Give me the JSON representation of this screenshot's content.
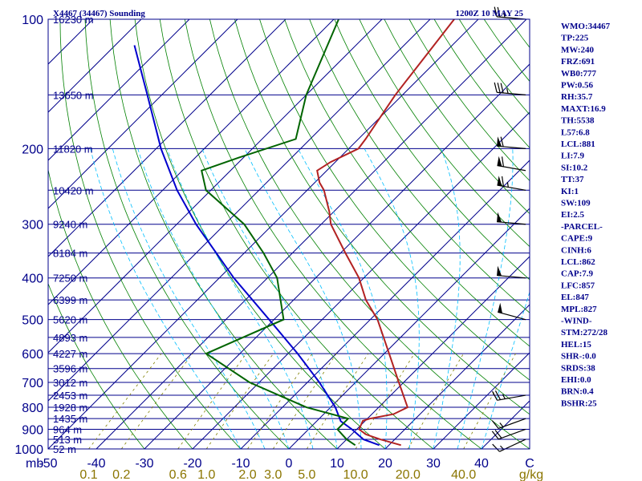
{
  "header": {
    "title_left": "X4467 (34467) Sounding",
    "title_right": "1200Z 10 MAY 25"
  },
  "colors": {
    "axis": "#00008b",
    "isotherm": "#00008b",
    "dry_adiabat": "#008000",
    "moist_adiabat": "#00bfff",
    "mixing_ratio": "#808000",
    "temperature": "#b22222",
    "dewpoint": "#006400",
    "parcel": "#0000cd",
    "wind_barb": "#000000"
  },
  "chart_data": {
    "type": "skew-t",
    "pressure_levels": [
      100,
      200,
      300,
      400,
      500,
      600,
      700,
      800,
      900,
      1000
    ],
    "pressure_axis_label": "mb",
    "pressure_range": [
      1000,
      100
    ],
    "temperature_ticks": [
      -50,
      -40,
      -30,
      -20,
      -10,
      0,
      10,
      20,
      30,
      40
    ],
    "temperature_range": [
      -50,
      50
    ],
    "mixing_ratio_ticks": [
      "0.1",
      "0.2",
      "0.6",
      "1.0",
      "2.0",
      "3.0",
      "5.0",
      "10.0",
      "20.0",
      "40.0"
    ],
    "mixing_ratio_values": [
      0.1,
      0.2,
      0.6,
      1.0,
      2.0,
      3.0,
      5.0,
      10.0,
      20.0,
      40.0
    ],
    "mixing_ratio_unit": "g/kg",
    "corner_label": "C",
    "height_levels": [
      {
        "p": 100,
        "label": "16230 m"
      },
      {
        "p": 150,
        "label": "13650 m"
      },
      {
        "p": 200,
        "label": "11820 m"
      },
      {
        "p": 250,
        "label": "10420 m"
      },
      {
        "p": 300,
        "label": "9240 m"
      },
      {
        "p": 350,
        "label": "8184 m"
      },
      {
        "p": 400,
        "label": "7250 m"
      },
      {
        "p": 450,
        "label": "6399 m"
      },
      {
        "p": 500,
        "label": "5620 m"
      },
      {
        "p": 550,
        "label": "4893 m"
      },
      {
        "p": 600,
        "label": "4227 m"
      },
      {
        "p": 650,
        "label": "3596 m"
      },
      {
        "p": 700,
        "label": "3012 m"
      },
      {
        "p": 750,
        "label": "2453 m"
      },
      {
        "p": 800,
        "label": "1928 m"
      },
      {
        "p": 850,
        "label": "1435 m"
      },
      {
        "p": 900,
        "label": "964 m"
      },
      {
        "p": 950,
        "label": "513 m"
      },
      {
        "p": 1000,
        "label": "52 m"
      }
    ],
    "temperature_profile": [
      {
        "p": 980,
        "t": 22.5
      },
      {
        "p": 950,
        "t": 17
      },
      {
        "p": 925,
        "t": 13
      },
      {
        "p": 900,
        "t": 10.5
      },
      {
        "p": 860,
        "t": 9.5
      },
      {
        "p": 850,
        "t": 10.5
      },
      {
        "p": 830,
        "t": 14.5
      },
      {
        "p": 800,
        "t": 16
      },
      {
        "p": 700,
        "t": 9
      },
      {
        "p": 600,
        "t": 1
      },
      {
        "p": 500,
        "t": -8.5
      },
      {
        "p": 450,
        "t": -15
      },
      {
        "p": 400,
        "t": -21
      },
      {
        "p": 350,
        "t": -29
      },
      {
        "p": 300,
        "t": -38
      },
      {
        "p": 280,
        "t": -41
      },
      {
        "p": 250,
        "t": -46.5
      },
      {
        "p": 240,
        "t": -49
      },
      {
        "p": 225,
        "t": -52
      },
      {
        "p": 215,
        "t": -51
      },
      {
        "p": 200,
        "t": -48
      },
      {
        "p": 190,
        "t": -48.5
      },
      {
        "p": 150,
        "t": -51.5
      },
      {
        "p": 100,
        "t": -55
      }
    ],
    "dewpoint_profile": [
      {
        "p": 980,
        "t": 13
      },
      {
        "p": 950,
        "t": 10
      },
      {
        "p": 900,
        "t": 6
      },
      {
        "p": 850,
        "t": 6
      },
      {
        "p": 800,
        "t": -5
      },
      {
        "p": 700,
        "t": -22
      },
      {
        "p": 600,
        "t": -37
      },
      {
        "p": 500,
        "t": -28
      },
      {
        "p": 400,
        "t": -38
      },
      {
        "p": 350,
        "t": -46
      },
      {
        "p": 300,
        "t": -56
      },
      {
        "p": 250,
        "t": -71
      },
      {
        "p": 225,
        "t": -76
      },
      {
        "p": 210,
        "t": -71
      },
      {
        "p": 190,
        "t": -63
      },
      {
        "p": 150,
        "t": -70
      },
      {
        "p": 100,
        "t": -79
      }
    ],
    "parcel_profile": [
      {
        "p": 980,
        "t": 18
      },
      {
        "p": 950,
        "t": 13.5
      },
      {
        "p": 900,
        "t": 9
      },
      {
        "p": 862,
        "t": 5
      },
      {
        "p": 800,
        "t": 1
      },
      {
        "p": 700,
        "t": -7.5
      },
      {
        "p": 600,
        "t": -18
      },
      {
        "p": 500,
        "t": -31
      },
      {
        "p": 400,
        "t": -47
      },
      {
        "p": 300,
        "t": -66
      },
      {
        "p": 250,
        "t": -77
      },
      {
        "p": 200,
        "t": -89
      },
      {
        "p": 150,
        "t": -103
      },
      {
        "p": 115,
        "t": -116
      }
    ],
    "wind_barbs": [
      {
        "p": 100,
        "dir": 275,
        "spd": 25
      },
      {
        "p": 150,
        "dir": 275,
        "spd": 35
      },
      {
        "p": 200,
        "dir": 275,
        "spd": 60
      },
      {
        "p": 225,
        "dir": 280,
        "spd": 60
      },
      {
        "p": 250,
        "dir": 280,
        "spd": 65
      },
      {
        "p": 300,
        "dir": 275,
        "spd": 50
      },
      {
        "p": 400,
        "dir": 275,
        "spd": 50
      },
      {
        "p": 500,
        "dir": 285,
        "spd": 50
      },
      {
        "p": 750,
        "dir": 260,
        "spd": 25
      },
      {
        "p": 850,
        "dir": 250,
        "spd": 15
      },
      {
        "p": 900,
        "dir": 250,
        "spd": 20
      },
      {
        "p": 950,
        "dir": 245,
        "spd": 15
      }
    ]
  },
  "indices": [
    "WMO:34467",
    "TP:225",
    "MW:240",
    "FRZ:691",
    "WB0:777",
    "PW:0.56",
    "RH:35.7",
    "MAXT:16.9",
    "TH:5538",
    "L57:6.8",
    "LCL:881",
    "LI:7.9",
    "SI:10.2",
    "TT:37",
    "KI:1",
    "SW:109",
    "EI:2.5",
    "-PARCEL-",
    "CAPE:9",
    "CINH:6",
    "LCL:862",
    "CAP:7.9",
    "LFC:857",
    "EL:847",
    "MPL:827",
    "-WIND-",
    "STM:272/28",
    "HEL:15",
    "SHR-:0.0",
    "SRDS:38",
    "EHI:0.0",
    "BRN:0.4",
    "BSHR:25"
  ]
}
